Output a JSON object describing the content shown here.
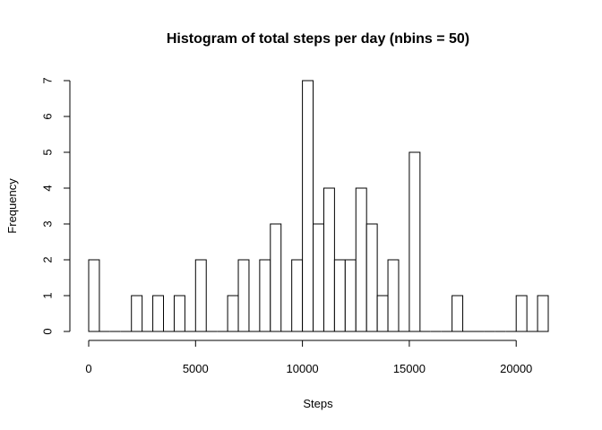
{
  "chart_data": {
    "type": "bar",
    "title": "Histogram of total steps per day (nbins = 50)",
    "xlabel": "Steps",
    "ylabel": "Frequency",
    "bin_width": 500,
    "bins_start": [
      0,
      2000,
      3000,
      4000,
      5000,
      6500,
      7000,
      8000,
      8500,
      9500,
      10000,
      10500,
      11000,
      11500,
      12000,
      12500,
      13000,
      13500,
      14000,
      15000,
      17000,
      20000,
      21000
    ],
    "values": [
      2,
      1,
      1,
      1,
      2,
      1,
      2,
      2,
      3,
      2,
      7,
      3,
      4,
      2,
      2,
      4,
      3,
      1,
      2,
      5,
      1,
      1,
      1
    ],
    "xlim": [
      0,
      21500
    ],
    "ylim": [
      0,
      7
    ],
    "x_ticks": [
      0,
      5000,
      10000,
      15000,
      20000
    ],
    "y_ticks": [
      0,
      1,
      2,
      3,
      4,
      5,
      6,
      7
    ],
    "grid": false,
    "colors": {
      "bar_fill": "#ffffff",
      "bar_stroke": "#000000"
    }
  }
}
